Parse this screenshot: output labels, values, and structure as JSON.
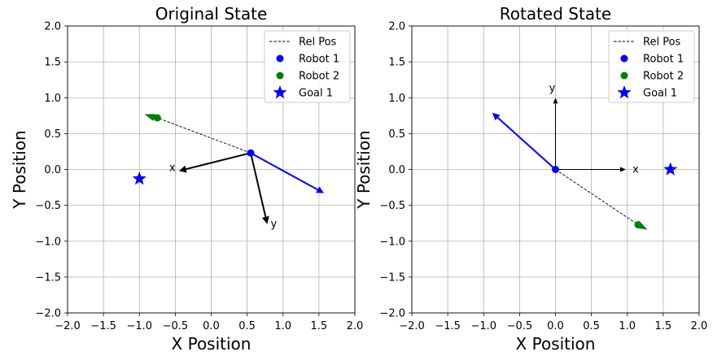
{
  "chart_data": [
    {
      "type": "scatter",
      "title": "Original State",
      "xlabel": "X Position",
      "ylabel": "Y Position",
      "xlim": [
        -2.0,
        2.0
      ],
      "ylim": [
        -2.0,
        2.0
      ],
      "xticks": [
        "−2.0",
        "−1.5",
        "−1.0",
        "−0.5",
        "0.0",
        "0.5",
        "1.0",
        "1.5",
        "2.0"
      ],
      "yticks": [
        "−2.0",
        "−1.5",
        "−1.0",
        "−0.5",
        "0.0",
        "0.5",
        "1.0",
        "1.5",
        "2.0"
      ],
      "grid": true,
      "legend_position": "top-right",
      "legend": [
        "Rel Pos",
        "Robot 1",
        "Robot 2",
        "Goal 1"
      ],
      "series": [
        {
          "name": "Rel Pos",
          "style": "dashed-line",
          "color": "#000000",
          "x": [
            0.55,
            -0.75
          ],
          "y": [
            0.23,
            0.72
          ]
        },
        {
          "name": "Robot 1",
          "marker": "circle",
          "color": "#0000ff",
          "x": [
            0.55
          ],
          "y": [
            0.23
          ]
        },
        {
          "name": "Robot 2",
          "marker": "circle",
          "color": "#008000",
          "x": [
            -0.75
          ],
          "y": [
            0.72
          ]
        },
        {
          "name": "Goal 1",
          "marker": "star",
          "color": "#0000ff",
          "x": [
            -1.0
          ],
          "y": [
            -0.13
          ]
        }
      ],
      "arrows": [
        {
          "color": "#0000ff",
          "from": [
            0.55,
            0.23
          ],
          "to": [
            1.57,
            -0.33
          ]
        },
        {
          "color": "#008000",
          "from": [
            -0.72,
            0.7
          ],
          "to": [
            -0.93,
            0.77
          ]
        },
        {
          "color": "#000000",
          "from": [
            0.55,
            0.23
          ],
          "to": [
            -0.45,
            -0.02
          ],
          "label": "x"
        },
        {
          "color": "#000000",
          "from": [
            0.55,
            0.23
          ],
          "to": [
            0.78,
            -0.76
          ],
          "label": "y"
        }
      ]
    },
    {
      "type": "scatter",
      "title": "Rotated State",
      "xlabel": "X Position",
      "ylabel": "Y Position",
      "xlim": [
        -2.0,
        2.0
      ],
      "ylim": [
        -2.0,
        2.0
      ],
      "xticks": [
        "−2.0",
        "−1.5",
        "−1.0",
        "−0.5",
        "0.0",
        "0.5",
        "1.0",
        "1.5",
        "2.0"
      ],
      "yticks": [
        "−2.0",
        "−1.5",
        "−1.0",
        "−0.5",
        "0.0",
        "0.5",
        "1.0",
        "1.5",
        "2.0"
      ],
      "grid": true,
      "legend_position": "top-right",
      "legend": [
        "Rel Pos",
        "Robot 1",
        "Robot 2",
        "Goal 1"
      ],
      "series": [
        {
          "name": "Rel Pos",
          "style": "dashed-line",
          "color": "#000000",
          "x": [
            0.0,
            1.15
          ],
          "y": [
            0.0,
            -0.77
          ]
        },
        {
          "name": "Robot 1",
          "marker": "circle",
          "color": "#0000ff",
          "x": [
            0.0
          ],
          "y": [
            0.0
          ]
        },
        {
          "name": "Robot 2",
          "marker": "circle",
          "color": "#008000",
          "x": [
            1.15
          ],
          "y": [
            -0.77
          ]
        },
        {
          "name": "Goal 1",
          "marker": "star",
          "color": "#0000ff",
          "x": [
            1.6
          ],
          "y": [
            0.0
          ]
        }
      ],
      "arrows": [
        {
          "color": "#0000ff",
          "from": [
            0.0,
            0.0
          ],
          "to": [
            -0.88,
            0.79
          ]
        },
        {
          "color": "#008000",
          "from": [
            1.13,
            -0.76
          ],
          "to": [
            1.28,
            -0.84
          ]
        },
        {
          "color": "#000000",
          "from": [
            0.0,
            0.0
          ],
          "to": [
            0.98,
            0.0
          ],
          "label": "x"
        },
        {
          "color": "#000000",
          "from": [
            0.0,
            0.0
          ],
          "to": [
            0.0,
            1.0
          ],
          "label": "y"
        }
      ]
    }
  ]
}
